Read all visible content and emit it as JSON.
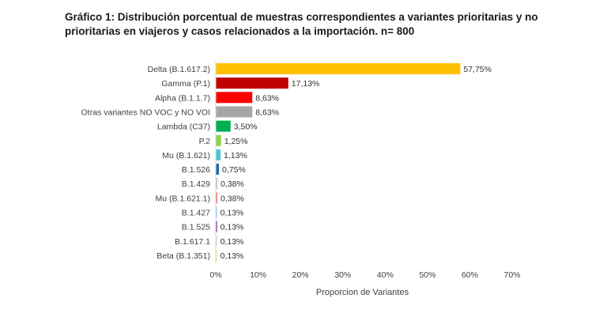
{
  "chart_data": {
    "type": "bar",
    "orientation": "horizontal",
    "title": "Gráfico 1: Distribución porcentual de muestras correspondientes a variantes prioritarias y no prioritarias en viajeros y casos relacionados a la importación. n= 800",
    "xlabel": "Proporcion de Variantes",
    "ylabel": "",
    "xlim": [
      0,
      70
    ],
    "x_ticks": [
      "0%",
      "10%",
      "20%",
      "30%",
      "40%",
      "50%",
      "60%",
      "70%"
    ],
    "grid": false,
    "categories": [
      "Delta (B.1.617.2)",
      "Gamma (P.1)",
      "Alpha (B.1.1.7)",
      "Otras variantes NO VOC y NO VOI",
      "Lambda (C37)",
      "P.2",
      "Mu (B.1.621)",
      "B.1.526",
      "B.1.429",
      "Mu (B.1.621.1)",
      "B.1.427",
      "B.1.525",
      "B.1.617.1",
      "Beta (B.1.351)"
    ],
    "values": [
      57.75,
      17.13,
      8.63,
      8.63,
      3.5,
      1.25,
      1.13,
      0.75,
      0.38,
      0.38,
      0.13,
      0.13,
      0.13,
      0.13
    ],
    "value_labels": [
      "57,75%",
      "17,13%",
      "8,63%",
      "8,63%",
      "3,50%",
      "1,25%",
      "1,13%",
      "0,75%",
      "0,38%",
      "0,38%",
      "0,13%",
      "0,13%",
      "0,13%",
      "0,13%"
    ],
    "colors": [
      "#FFC000",
      "#C00000",
      "#FF0000",
      "#A6A6A6",
      "#00B050",
      "#92D050",
      "#4BC7D6",
      "#1F6BB0",
      "#BFBFBF",
      "#FF7C80",
      "#9DC3E6",
      "#7030A0",
      "#D9D9D9",
      "#FFE699"
    ]
  }
}
